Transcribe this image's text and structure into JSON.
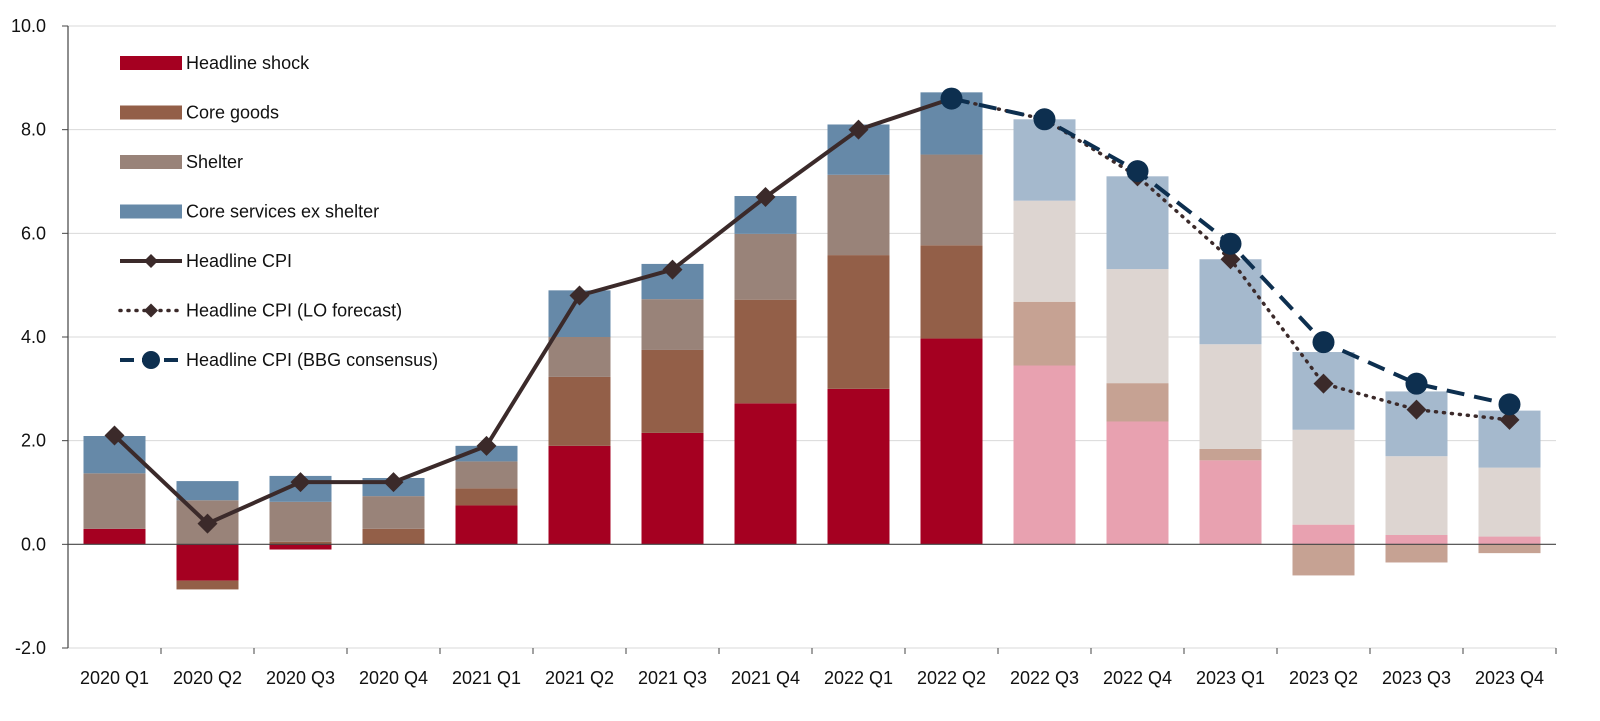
{
  "chart_data": {
    "type": "bar",
    "stacked": true,
    "title": "",
    "xlabel": "",
    "ylabel": "",
    "ylim": [
      -2.0,
      10.0
    ],
    "yticks": [
      -2.0,
      0.0,
      2.0,
      4.0,
      6.0,
      8.0,
      10.0
    ],
    "ytick_labels": [
      "-2.0",
      "0.0",
      "2.0",
      "4.0",
      "6.0",
      "8.0",
      "10.0"
    ],
    "grid": true,
    "legend_position": "top-left",
    "categories": [
      "2020 Q1",
      "2020 Q2",
      "2020 Q3",
      "2020 Q4",
      "2021 Q1",
      "2021 Q2",
      "2021 Q3",
      "2021 Q4",
      "2022 Q1",
      "2022 Q2",
      "2022 Q3",
      "2022 Q4",
      "2023 Q1",
      "2023 Q2",
      "2023 Q3",
      "2023 Q4"
    ],
    "forecast_start_index": 10,
    "series": [
      {
        "name": "Headline shock",
        "kind": "bar",
        "color": "#A50021",
        "forecast_color": "#E8A1B0",
        "values": [
          0.3,
          -0.7,
          -0.1,
          0.0,
          0.75,
          1.9,
          2.15,
          2.72,
          3.0,
          3.97,
          3.45,
          2.37,
          1.62,
          0.38,
          0.18,
          0.15
        ]
      },
      {
        "name": "Core goods",
        "kind": "bar",
        "color": "#935F48",
        "forecast_color": "#C6A293",
        "values": [
          0.0,
          -0.17,
          0.05,
          0.3,
          0.33,
          1.33,
          1.6,
          2.0,
          2.58,
          1.8,
          1.23,
          0.74,
          0.22,
          -0.6,
          -0.35,
          -0.17
        ]
      },
      {
        "name": "Shelter",
        "kind": "bar",
        "color": "#998379",
        "forecast_color": "#DDD5D1",
        "values": [
          1.07,
          0.85,
          0.77,
          0.63,
          0.52,
          0.77,
          0.98,
          1.27,
          1.55,
          1.75,
          1.95,
          2.2,
          2.02,
          1.83,
          1.52,
          1.33
        ]
      },
      {
        "name": "Core services ex shelter",
        "kind": "bar",
        "color": "#6689A8",
        "forecast_color": "#A5B9CD",
        "values": [
          0.72,
          0.37,
          0.5,
          0.35,
          0.3,
          0.9,
          0.68,
          0.73,
          0.97,
          1.2,
          1.57,
          1.79,
          1.64,
          1.5,
          1.25,
          1.1
        ]
      },
      {
        "name": "Headline CPI",
        "kind": "line",
        "style": "solid",
        "marker": "diamond",
        "color": "#3B2A2A",
        "values": [
          2.1,
          0.4,
          1.2,
          1.2,
          1.9,
          4.8,
          5.3,
          6.7,
          8.0,
          8.6,
          null,
          null,
          null,
          null,
          null,
          null
        ]
      },
      {
        "name": "Headline CPI (LO forecast)",
        "kind": "line",
        "style": "dotted",
        "marker": "diamond",
        "color": "#3B2A2A",
        "values": [
          null,
          null,
          null,
          null,
          null,
          null,
          null,
          null,
          null,
          8.6,
          8.2,
          7.1,
          5.5,
          3.1,
          2.6,
          2.4
        ]
      },
      {
        "name": "Headline CPI (BBG consensus)",
        "kind": "line",
        "style": "dashed",
        "marker": "circle",
        "color": "#0D2F4F",
        "values": [
          null,
          null,
          null,
          null,
          null,
          null,
          null,
          null,
          null,
          8.6,
          8.2,
          7.2,
          5.8,
          3.9,
          3.1,
          2.7
        ]
      }
    ]
  }
}
